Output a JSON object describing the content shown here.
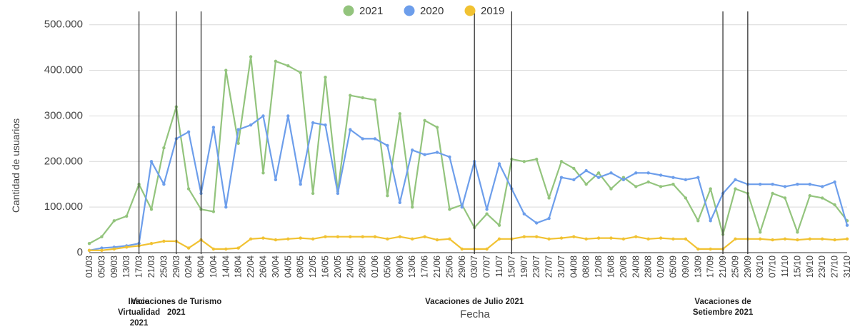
{
  "chart_data": {
    "type": "line",
    "xlabel": "Fecha",
    "ylabel": "Cantidad de usuarios",
    "ylim": [
      0,
      520000
    ],
    "y_ticks": [
      "0",
      "100.000",
      "200.000",
      "300.000",
      "400.000",
      "500.000"
    ],
    "y_tick_values": [
      0,
      100000,
      200000,
      300000,
      400000,
      500000
    ],
    "grid": true,
    "legend_position": "top",
    "x": [
      "01/03",
      "05/03",
      "09/03",
      "13/03",
      "17/03",
      "21/03",
      "25/03",
      "29/03",
      "02/04",
      "06/04",
      "10/04",
      "14/04",
      "18/04",
      "22/04",
      "26/04",
      "30/04",
      "04/05",
      "08/05",
      "12/05",
      "16/05",
      "20/05",
      "24/05",
      "28/05",
      "01/06",
      "05/06",
      "09/06",
      "13/06",
      "17/06",
      "21/06",
      "25/06",
      "29/06",
      "03/07",
      "07/07",
      "11/07",
      "15/07",
      "19/07",
      "23/07",
      "27/07",
      "31/07",
      "04/08",
      "08/08",
      "12/08",
      "16/08",
      "20/08",
      "24/08",
      "28/08",
      "01/09",
      "05/09",
      "09/09",
      "13/09",
      "17/09",
      "21/09",
      "25/09",
      "29/09",
      "03/10",
      "07/10",
      "11/10",
      "15/10",
      "19/10",
      "23/10",
      "27/10",
      "31/10"
    ],
    "series": [
      {
        "name": "2021",
        "color": "#93c47d",
        "values": [
          20000,
          35000,
          70000,
          80000,
          150000,
          95000,
          230000,
          320000,
          140000,
          95000,
          90000,
          400000,
          240000,
          430000,
          175000,
          420000,
          410000,
          395000,
          130000,
          385000,
          135000,
          345000,
          340000,
          335000,
          125000,
          305000,
          100000,
          290000,
          275000,
          95000,
          105000,
          55000,
          85000,
          60000,
          205000,
          200000,
          205000,
          120000,
          200000,
          185000,
          150000,
          175000,
          140000,
          165000,
          145000,
          155000,
          145000,
          150000,
          120000,
          70000,
          140000,
          40000,
          140000,
          130000,
          45000,
          130000,
          120000,
          45000,
          125000,
          120000,
          105000,
          70000
        ]
      },
      {
        "name": "2020",
        "color": "#6d9eeb",
        "values": [
          5000,
          10000,
          12000,
          15000,
          20000,
          200000,
          150000,
          250000,
          265000,
          130000,
          275000,
          100000,
          270000,
          280000,
          300000,
          160000,
          300000,
          150000,
          285000,
          280000,
          130000,
          270000,
          250000,
          250000,
          235000,
          110000,
          225000,
          215000,
          220000,
          210000,
          100000,
          200000,
          95000,
          195000,
          140000,
          85000,
          65000,
          75000,
          165000,
          160000,
          180000,
          165000,
          175000,
          160000,
          175000,
          175000,
          170000,
          165000,
          160000,
          165000,
          70000,
          130000,
          160000,
          150000,
          150000,
          150000,
          145000,
          150000,
          150000,
          145000,
          155000,
          60000
        ]
      },
      {
        "name": "2019",
        "color": "#f1c232",
        "values": [
          5000,
          5000,
          8000,
          12000,
          15000,
          20000,
          25000,
          25000,
          10000,
          28000,
          8000,
          8000,
          10000,
          30000,
          32000,
          28000,
          30000,
          32000,
          30000,
          35000,
          35000,
          35000,
          35000,
          35000,
          30000,
          35000,
          30000,
          35000,
          28000,
          30000,
          8000,
          8000,
          8000,
          30000,
          30000,
          35000,
          35000,
          30000,
          32000,
          35000,
          30000,
          32000,
          32000,
          30000,
          35000,
          30000,
          32000,
          30000,
          30000,
          8000,
          8000,
          8000,
          30000,
          30000,
          30000,
          28000,
          30000,
          28000,
          30000,
          30000,
          28000,
          30000
        ]
      }
    ],
    "annotations": [
      {
        "at": "17/03",
        "lines": [
          "Inicio",
          "Virtualidad",
          "2021"
        ]
      },
      {
        "at": "29/03",
        "lines": [
          "Vacaciones de Turismo",
          "2021"
        ]
      },
      {
        "at": "06/04",
        "lines": []
      },
      {
        "at": "03/07",
        "lines": [
          "Vacaciones de Julio 2021"
        ]
      },
      {
        "at": "15/07",
        "lines": []
      },
      {
        "at": "21/09",
        "lines": [
          "Vacaciones de",
          "Setiembre  2021"
        ]
      },
      {
        "at": "29/09",
        "lines": []
      }
    ]
  }
}
